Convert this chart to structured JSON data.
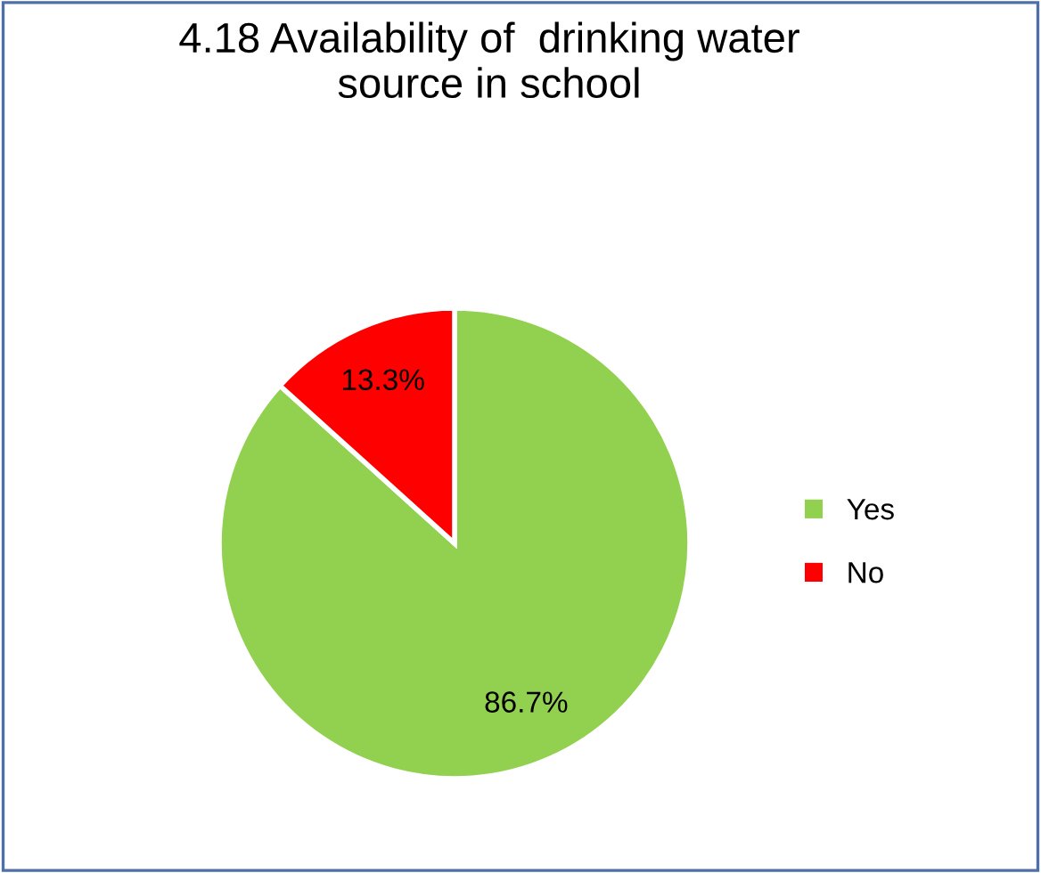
{
  "chart_data": {
    "type": "pie",
    "title": "4.18 Availability of  drinking water\nsource in school",
    "categories": [
      "Yes",
      "No"
    ],
    "values": [
      86.7,
      13.3
    ],
    "colors": [
      "#92d050",
      "#ff0000"
    ],
    "value_labels": [
      "86.7%",
      "13.3%"
    ],
    "legend": "right"
  }
}
